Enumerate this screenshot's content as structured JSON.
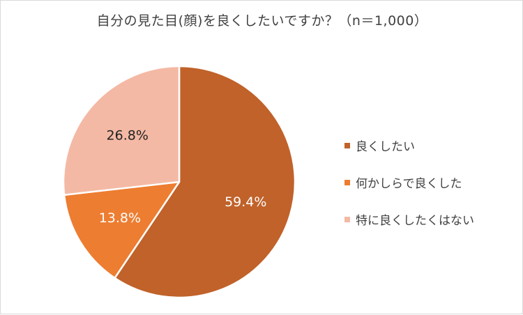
{
  "chart_data": {
    "type": "pie",
    "title": "自分の見た目(顔)を良くしたいですか？（n＝1,000）",
    "categories": [
      "良くしたい",
      "何かしらで良くした",
      "特に良くしたくはない"
    ],
    "values": [
      59.4,
      13.8,
      26.8
    ],
    "labels": [
      "59.4%",
      "13.8%",
      "26.8%"
    ],
    "colors": [
      "#c0622a",
      "#ed7d31",
      "#f4b9a4"
    ],
    "label_colors": [
      "#ffffff",
      "#ffffff",
      "#222222"
    ],
    "legend_position": "right",
    "start_angle_deg": 0,
    "direction": "clockwise"
  }
}
